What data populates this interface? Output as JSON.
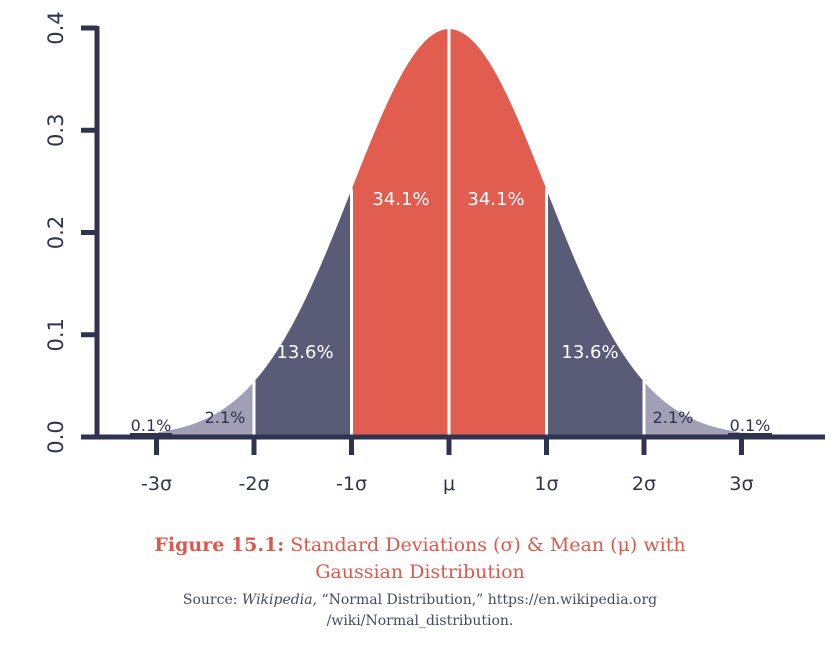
{
  "colors": {
    "center": "#e05d4f",
    "mid": "#5a5b77",
    "outer": "#a09fb6",
    "axis": "#2f3350",
    "caption": "#d95a4c"
  },
  "chart_data": {
    "type": "area",
    "title": "",
    "xlabel": "",
    "ylabel": "",
    "ylim": [
      0.0,
      0.4
    ],
    "xlim": [
      -3.5,
      3.5
    ],
    "y_ticks": [
      "0.0",
      "0.1",
      "0.2",
      "0.3",
      "0.4"
    ],
    "x_ticks": [
      {
        "value": -3,
        "label": "-3σ"
      },
      {
        "value": -2,
        "label": "-2σ"
      },
      {
        "value": -1,
        "label": "-1σ"
      },
      {
        "value": 0,
        "label": "μ"
      },
      {
        "value": 1,
        "label": "1σ"
      },
      {
        "value": 2,
        "label": "2σ"
      },
      {
        "value": 3,
        "label": "3σ"
      }
    ],
    "curve": "standard normal density",
    "regions": [
      {
        "from": -3.5,
        "to": -3,
        "percent": "0.1%",
        "shade": "outer"
      },
      {
        "from": -3,
        "to": -2,
        "percent": "2.1%",
        "shade": "outer"
      },
      {
        "from": -2,
        "to": -1,
        "percent": "13.6%",
        "shade": "mid"
      },
      {
        "from": -1,
        "to": 0,
        "percent": "34.1%",
        "shade": "center"
      },
      {
        "from": 0,
        "to": 1,
        "percent": "34.1%",
        "shade": "center"
      },
      {
        "from": 1,
        "to": 2,
        "percent": "13.6%",
        "shade": "mid"
      },
      {
        "from": 2,
        "to": 3,
        "percent": "2.1%",
        "shade": "outer"
      },
      {
        "from": 3,
        "to": 3.5,
        "percent": "0.1%",
        "shade": "outer"
      }
    ],
    "grid": false
  },
  "caption": {
    "figure_label": "Figure 15.1:",
    "title_line1": "Standard Deviations (σ) & Mean (μ) with",
    "title_line2": "Gaussian Distribution",
    "source_prefix": "Source: ",
    "source_italic": "Wikipedia",
    "source_rest": ", “Normal Distribution,” https://en.wikipedia.org",
    "source_line2": "/wiki/Normal_distribution."
  }
}
